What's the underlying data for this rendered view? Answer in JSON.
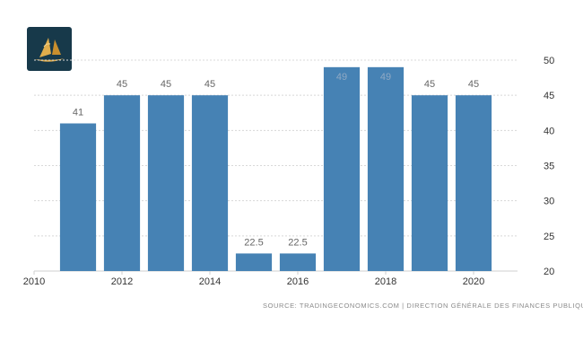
{
  "chart_data": {
    "type": "bar",
    "x": [
      2011,
      2012,
      2013,
      2014,
      2015,
      2016,
      2017,
      2018,
      2019,
      2020
    ],
    "values": [
      41,
      45,
      45,
      45,
      22.5,
      22.5,
      49,
      49,
      45,
      45
    ],
    "data_labels": [
      "41",
      "45",
      "45",
      "45",
      "22.5",
      "22.5",
      "49",
      "49",
      "45",
      "45"
    ],
    "xlim": [
      2010,
      2021
    ],
    "ylim": [
      20,
      50
    ],
    "x_ticks": [
      "2010",
      "2012",
      "2014",
      "2016",
      "2018",
      "2020"
    ],
    "y_ticks": [
      "50",
      "45",
      "40",
      "35",
      "30",
      "25",
      "20"
    ],
    "y_axis_side": "right",
    "grid": "horizontal dashed",
    "bar_color": "#4682b4",
    "source": "SOURCE: TRADINGECONOMICS.COM | DIRECTION GÉNÉRALE DES FINANCES PUBLIQUES"
  },
  "logo": {
    "icon": "sailboat-logo-icon",
    "background": "#17394a",
    "accent": "#d9a441"
  }
}
